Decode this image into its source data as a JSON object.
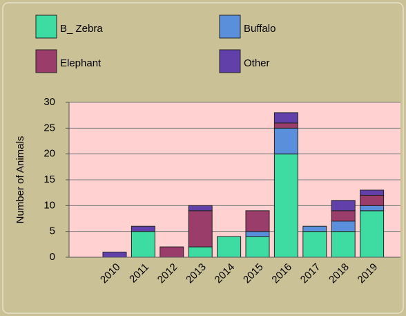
{
  "chart_data": {
    "type": "stacked_bar",
    "categories": [
      "2010",
      "2011",
      "2012",
      "2013",
      "2014",
      "2015",
      "2016",
      "2017",
      "2018",
      "2019"
    ],
    "series": [
      {
        "name": "B_ Zebra",
        "color": "#3edba2",
        "values": [
          0,
          5,
          0,
          2,
          4,
          4,
          20,
          5,
          5,
          9
        ]
      },
      {
        "name": "Buffalo",
        "color": "#5a8fdb",
        "values": [
          0,
          0,
          0,
          0,
          0,
          1,
          5,
          1,
          2,
          1
        ]
      },
      {
        "name": "Elephant",
        "color": "#9a3d6a",
        "values": [
          0,
          0,
          2,
          7,
          0,
          4,
          1,
          0,
          2,
          2
        ]
      },
      {
        "name": "Other",
        "color": "#6140aa",
        "values": [
          1,
          1,
          0,
          1,
          0,
          0,
          2,
          0,
          2,
          1
        ]
      }
    ],
    "y_label": "Number of Animals",
    "ylim": [
      0,
      30
    ],
    "yticks": [
      0,
      5,
      10,
      15,
      20,
      25,
      30
    ],
    "grid": true
  }
}
